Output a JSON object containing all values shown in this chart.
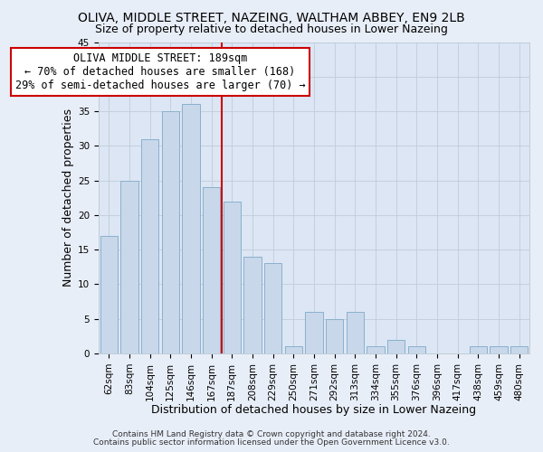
{
  "title": "OLIVA, MIDDLE STREET, NAZEING, WALTHAM ABBEY, EN9 2LB",
  "subtitle": "Size of property relative to detached houses in Lower Nazeing",
  "xlabel": "Distribution of detached houses by size in Lower Nazeing",
  "ylabel": "Number of detached properties",
  "footer_line1": "Contains HM Land Registry data © Crown copyright and database right 2024.",
  "footer_line2": "Contains public sector information licensed under the Open Government Licence v3.0.",
  "annotation_line1": "OLIVA MIDDLE STREET: 189sqm",
  "annotation_line2": "← 70% of detached houses are smaller (168)",
  "annotation_line3": "29% of semi-detached houses are larger (70) →",
  "bar_labels": [
    "62sqm",
    "83sqm",
    "104sqm",
    "125sqm",
    "146sqm",
    "167sqm",
    "187sqm",
    "208sqm",
    "229sqm",
    "250sqm",
    "271sqm",
    "292sqm",
    "313sqm",
    "334sqm",
    "355sqm",
    "376sqm",
    "396sqm",
    "417sqm",
    "438sqm",
    "459sqm",
    "480sqm"
  ],
  "bar_values": [
    17,
    25,
    31,
    35,
    36,
    24,
    22,
    14,
    13,
    1,
    6,
    5,
    6,
    1,
    2,
    1,
    0,
    0,
    1,
    1,
    1
  ],
  "bar_color": "#c8d8ea",
  "bar_edgecolor": "#8ab0cc",
  "vline_index": 6,
  "vline_color": "#cc0000",
  "ylim": [
    0,
    45
  ],
  "yticks": [
    0,
    5,
    10,
    15,
    20,
    25,
    30,
    35,
    40,
    45
  ],
  "grid_color": "#c0ccd8",
  "background_color": "#e8eef8",
  "plot_bg_color": "#dce6f4",
  "title_fontsize": 10,
  "subtitle_fontsize": 9,
  "axis_label_fontsize": 9,
  "tick_fontsize": 7.5,
  "annotation_fontsize": 8.5,
  "footer_fontsize": 6.5
}
